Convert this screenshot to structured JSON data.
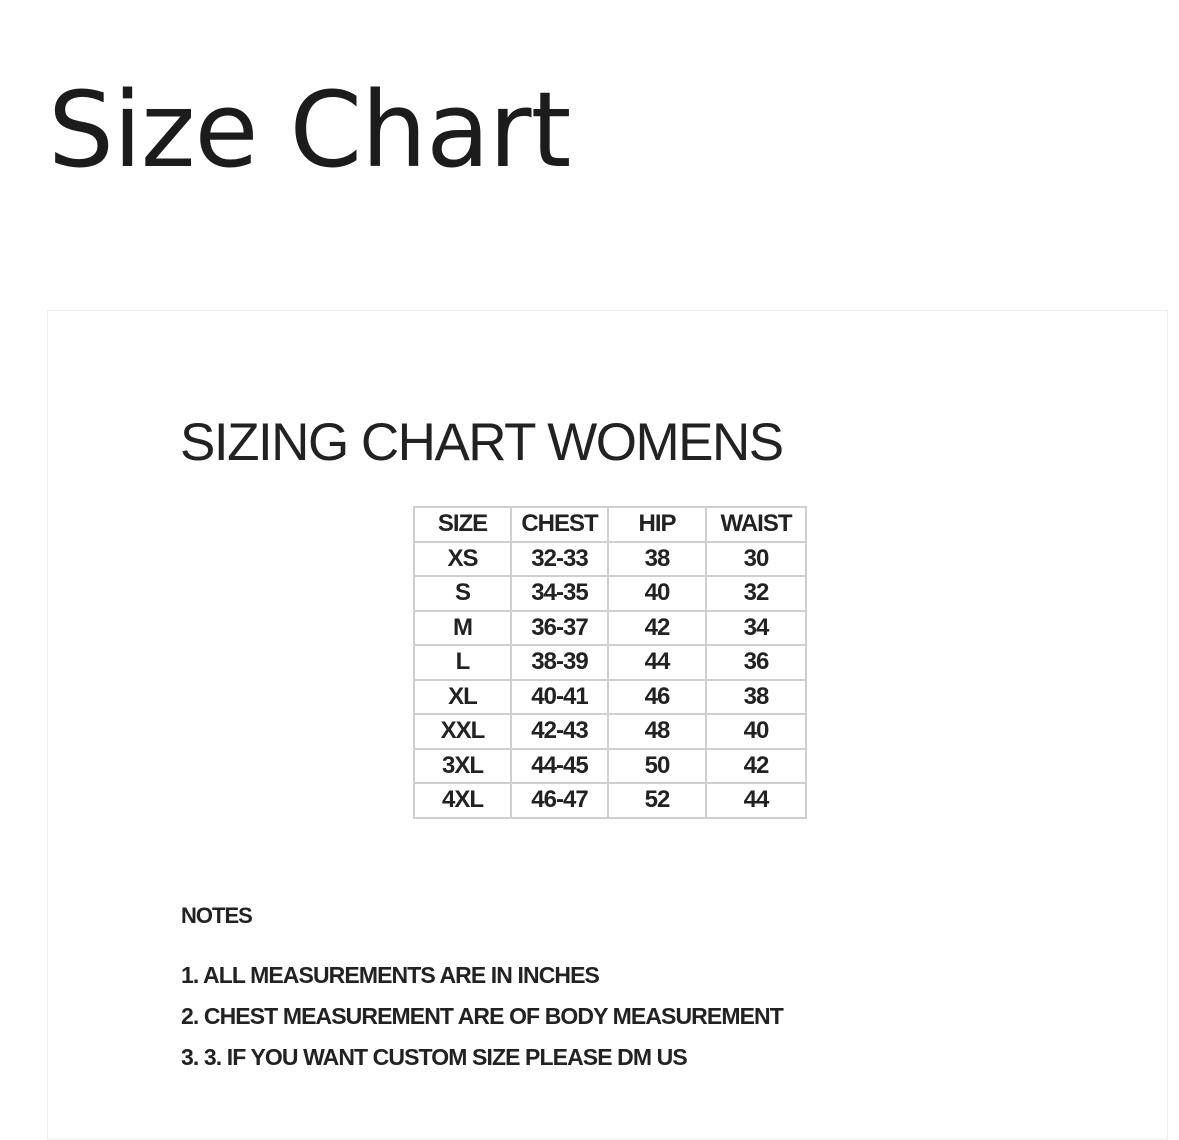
{
  "page": {
    "title": "Size Chart"
  },
  "chart": {
    "heading": "SIZING CHART WOMENS",
    "columns": [
      "SIZE",
      "CHEST",
      "HIP",
      "WAIST"
    ],
    "rows": [
      [
        "XS",
        "32-33",
        "38",
        "30"
      ],
      [
        "S",
        "34-35",
        "40",
        "32"
      ],
      [
        "M",
        "36-37",
        "42",
        "34"
      ],
      [
        "L",
        "38-39",
        "44",
        "36"
      ],
      [
        "XL",
        "40-41",
        "46",
        "38"
      ],
      [
        "XXL",
        "42-43",
        "48",
        "40"
      ],
      [
        "3XL",
        "44-45",
        "50",
        "42"
      ],
      [
        "4XL",
        "46-47",
        "52",
        "44"
      ]
    ],
    "notes_title": "NOTES",
    "notes": [
      "1. ALL MEASUREMENTS ARE IN INCHES",
      "2. CHEST MEASUREMENT ARE OF BODY MEASUREMENT",
      "3. 3. IF YOU WANT CUSTOM SIZE PLEASE DM US"
    ]
  }
}
